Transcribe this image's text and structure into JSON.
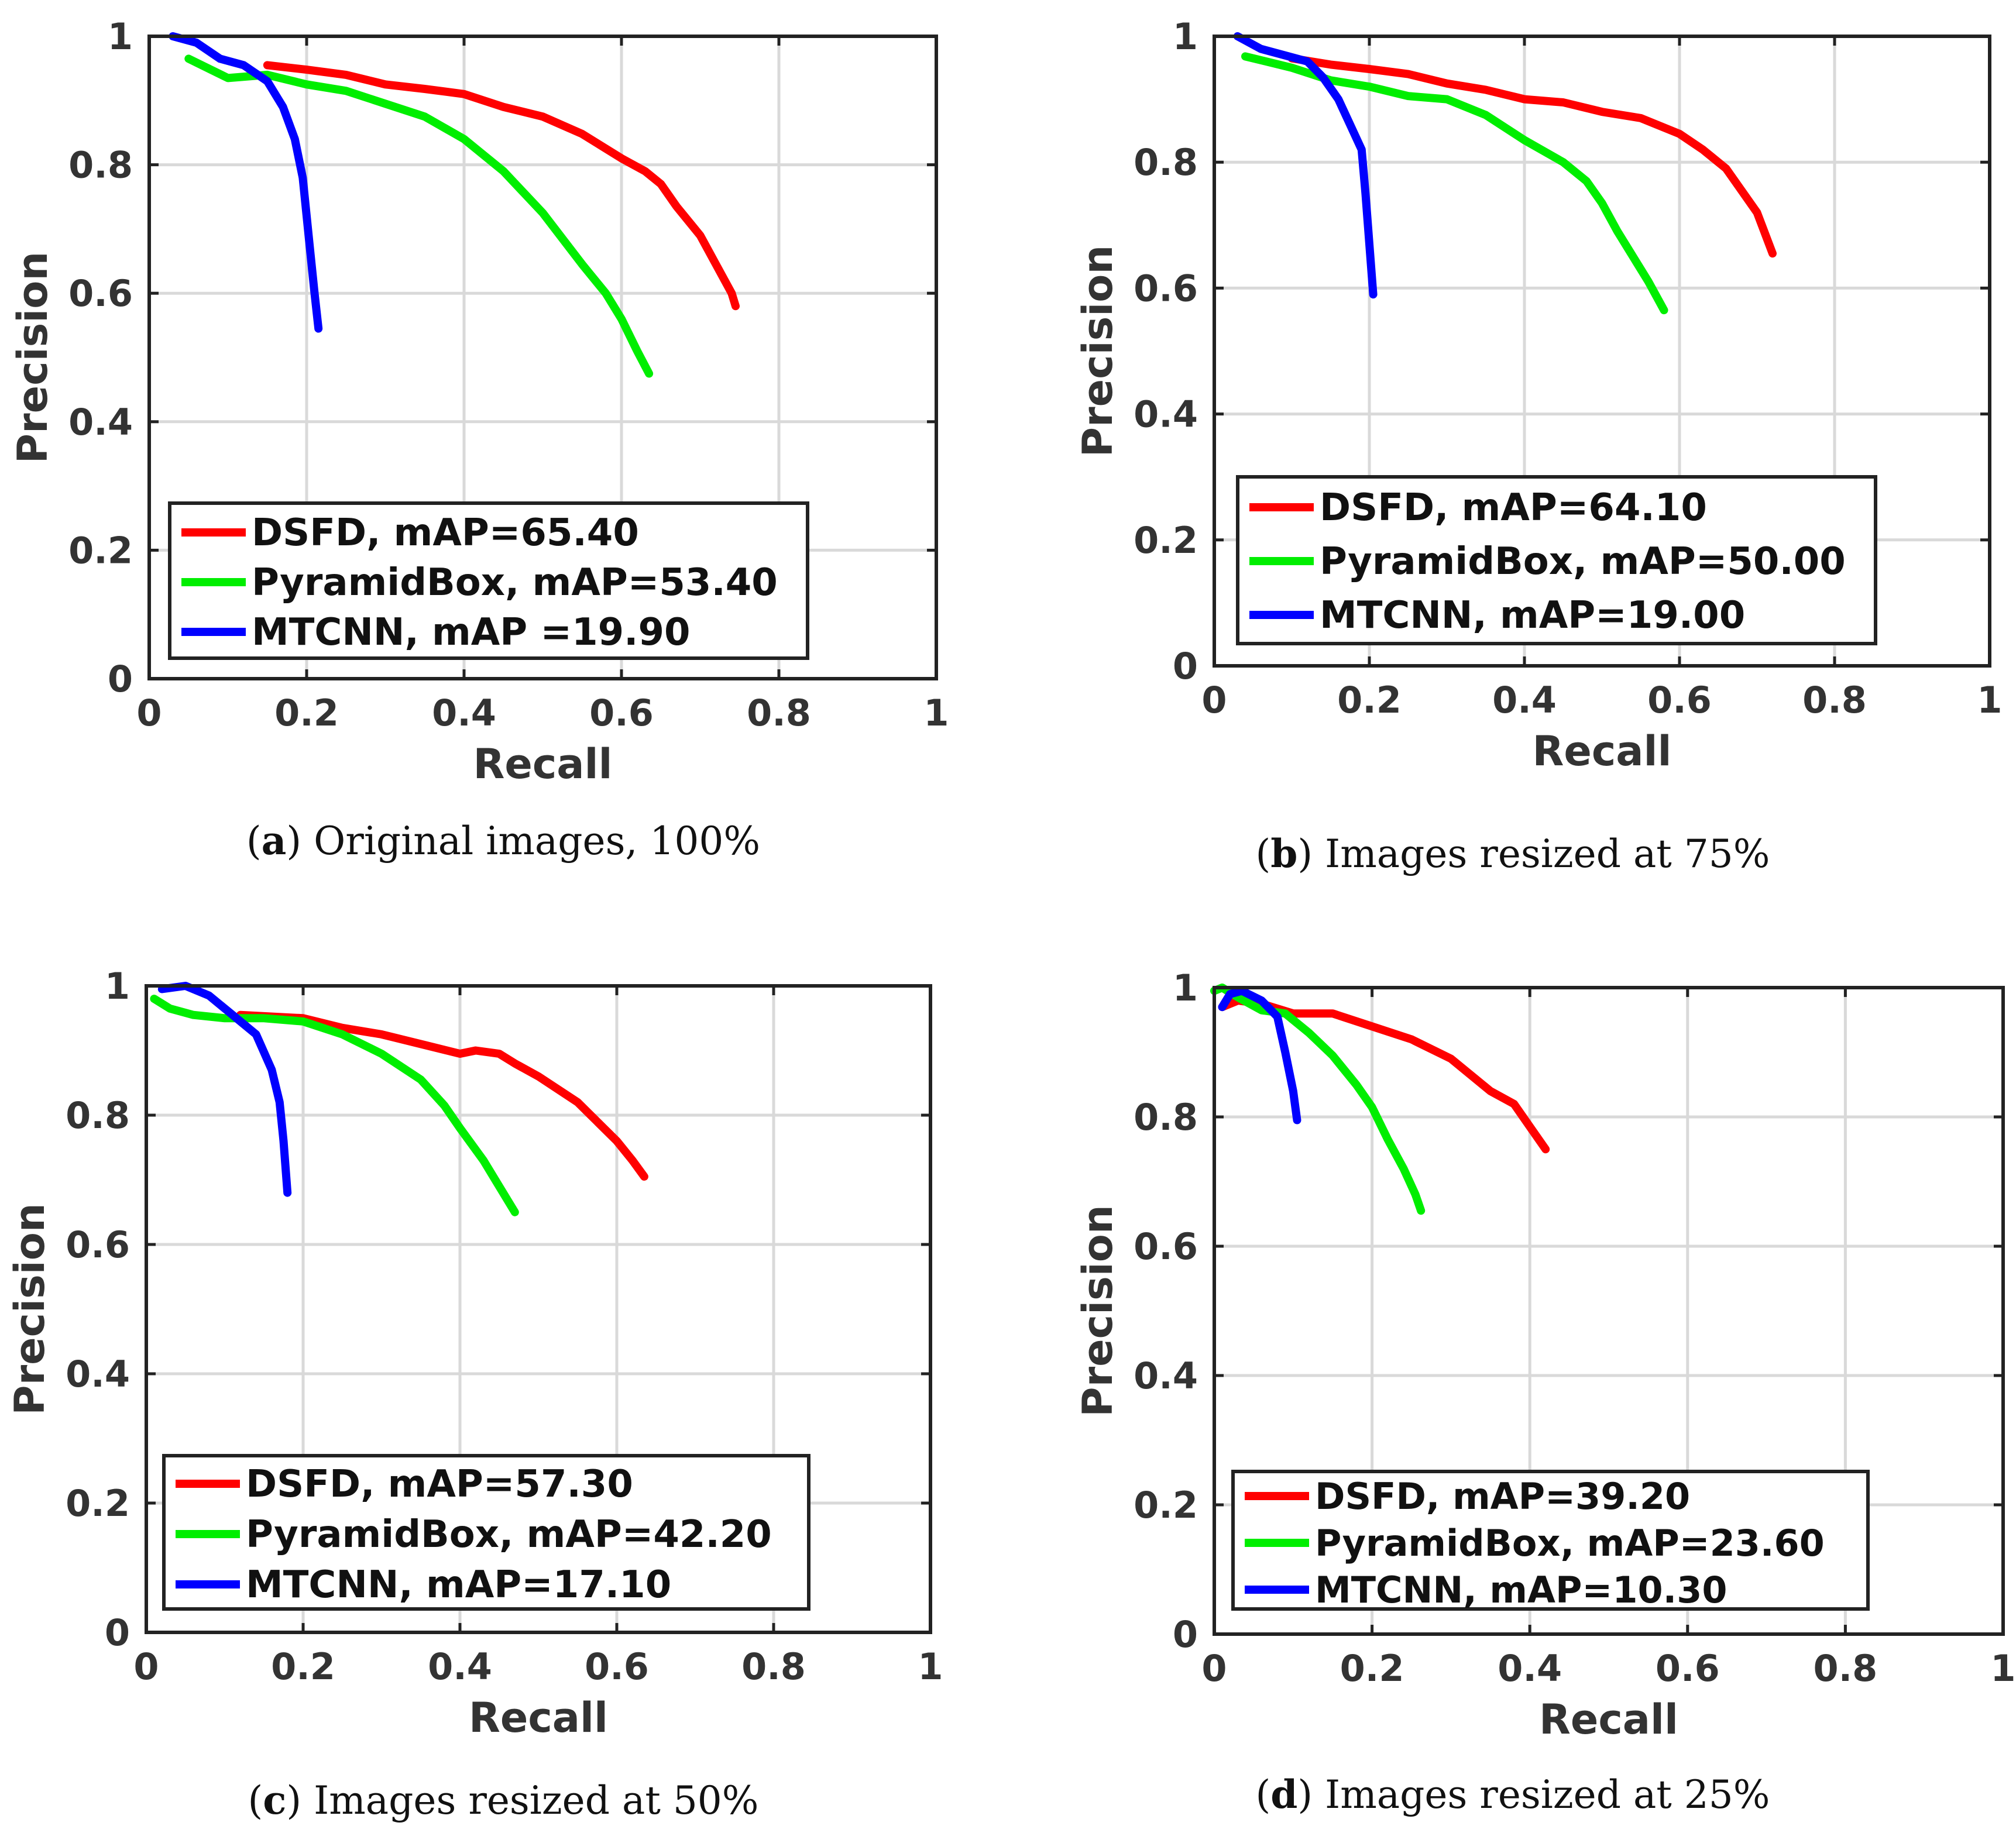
{
  "figure": {
    "panels": [
      {
        "caption_letter": "a",
        "caption_text": "Original images, 100%"
      },
      {
        "caption_letter": "b",
        "caption_text": "Images resized at 75%"
      },
      {
        "caption_letter": "c",
        "caption_text": "Images resized at 50%"
      },
      {
        "caption_letter": "d",
        "caption_text": "Images resized at 25%"
      }
    ]
  },
  "chart_data": [
    {
      "type": "line",
      "panel": "a",
      "xlabel": "Recall",
      "ylabel": "Precision",
      "xlim": [
        0,
        1
      ],
      "ylim": [
        0,
        1
      ],
      "xticks": [
        "0",
        "0.2",
        "0.4",
        "0.6",
        "0.8",
        "1"
      ],
      "yticks": [
        "0",
        "0.2",
        "0.4",
        "0.6",
        "0.8",
        "1"
      ],
      "grid": true,
      "legend_position": "bottom-left",
      "series": [
        {
          "name": "DSFD",
          "legend_label": "DSFD, mAP=65.40",
          "color": "#ff0000",
          "x": [
            0.15,
            0.2,
            0.25,
            0.3,
            0.35,
            0.4,
            0.45,
            0.5,
            0.55,
            0.6,
            0.63,
            0.65,
            0.67,
            0.7,
            0.72,
            0.74,
            0.745
          ],
          "y": [
            0.955,
            0.948,
            0.94,
            0.925,
            0.918,
            0.91,
            0.89,
            0.875,
            0.848,
            0.81,
            0.79,
            0.77,
            0.735,
            0.69,
            0.645,
            0.6,
            0.58
          ]
        },
        {
          "name": "PyramidBox",
          "legend_label": "PyramidBox, mAP=53.40",
          "color": "#00ee00",
          "x": [
            0.05,
            0.1,
            0.15,
            0.2,
            0.25,
            0.3,
            0.35,
            0.4,
            0.45,
            0.5,
            0.55,
            0.58,
            0.6,
            0.62,
            0.635
          ],
          "y": [
            0.965,
            0.935,
            0.94,
            0.925,
            0.915,
            0.895,
            0.875,
            0.84,
            0.79,
            0.725,
            0.645,
            0.6,
            0.56,
            0.51,
            0.475
          ]
        },
        {
          "name": "MTCNN",
          "legend_label": "MTCNN, mAP =19.90",
          "color": "#0000ff",
          "x": [
            0.03,
            0.06,
            0.09,
            0.12,
            0.15,
            0.17,
            0.185,
            0.195,
            0.2,
            0.205,
            0.21,
            0.215
          ],
          "y": [
            1.0,
            0.99,
            0.965,
            0.955,
            0.93,
            0.89,
            0.84,
            0.78,
            0.72,
            0.66,
            0.6,
            0.545
          ]
        }
      ]
    },
    {
      "type": "line",
      "panel": "b",
      "xlabel": "Recall",
      "ylabel": "Precision",
      "xlim": [
        0,
        1
      ],
      "ylim": [
        0,
        1
      ],
      "xticks": [
        "0",
        "0.2",
        "0.4",
        "0.6",
        "0.8",
        "1"
      ],
      "yticks": [
        "0",
        "0.2",
        "0.4",
        "0.6",
        "0.8",
        "1"
      ],
      "grid": true,
      "legend_position": "bottom-left",
      "series": [
        {
          "name": "DSFD",
          "legend_label": "DSFD, mAP=64.10",
          "color": "#ff0000",
          "x": [
            0.1,
            0.15,
            0.2,
            0.25,
            0.3,
            0.35,
            0.4,
            0.45,
            0.5,
            0.55,
            0.6,
            0.63,
            0.66,
            0.68,
            0.7,
            0.72
          ],
          "y": [
            0.965,
            0.955,
            0.948,
            0.94,
            0.925,
            0.915,
            0.9,
            0.895,
            0.88,
            0.87,
            0.845,
            0.82,
            0.79,
            0.755,
            0.72,
            0.655
          ]
        },
        {
          "name": "PyramidBox",
          "legend_label": "PyramidBox, mAP=50.00",
          "color": "#00ee00",
          "x": [
            0.04,
            0.1,
            0.15,
            0.2,
            0.25,
            0.3,
            0.35,
            0.4,
            0.45,
            0.48,
            0.5,
            0.52,
            0.54,
            0.56,
            0.58
          ],
          "y": [
            0.968,
            0.95,
            0.93,
            0.92,
            0.905,
            0.9,
            0.875,
            0.835,
            0.8,
            0.77,
            0.735,
            0.69,
            0.65,
            0.61,
            0.565
          ]
        },
        {
          "name": "MTCNN",
          "legend_label": "MTCNN, mAP=19.00",
          "color": "#0000ff",
          "x": [
            0.03,
            0.06,
            0.09,
            0.12,
            0.14,
            0.16,
            0.175,
            0.19,
            0.195,
            0.2,
            0.205
          ],
          "y": [
            1.0,
            0.98,
            0.97,
            0.96,
            0.935,
            0.9,
            0.86,
            0.82,
            0.75,
            0.67,
            0.59
          ]
        }
      ]
    },
    {
      "type": "line",
      "panel": "c",
      "xlabel": "Recall",
      "ylabel": "Precision",
      "xlim": [
        0,
        1
      ],
      "ylim": [
        0,
        1
      ],
      "xticks": [
        "0",
        "0.2",
        "0.4",
        "0.6",
        "0.8",
        "1"
      ],
      "yticks": [
        "0",
        "0.2",
        "0.4",
        "0.6",
        "0.8",
        "1"
      ],
      "grid": true,
      "legend_position": "bottom-left",
      "series": [
        {
          "name": "DSFD",
          "legend_label": "DSFD, mAP=57.30",
          "color": "#ff0000",
          "x": [
            0.12,
            0.2,
            0.25,
            0.3,
            0.35,
            0.4,
            0.42,
            0.45,
            0.47,
            0.5,
            0.55,
            0.6,
            0.62,
            0.635
          ],
          "y": [
            0.955,
            0.95,
            0.935,
            0.925,
            0.91,
            0.895,
            0.9,
            0.895,
            0.88,
            0.86,
            0.82,
            0.76,
            0.73,
            0.705
          ]
        },
        {
          "name": "PyramidBox",
          "legend_label": "PyramidBox, mAP=42.20",
          "color": "#00ee00",
          "x": [
            0.01,
            0.03,
            0.06,
            0.1,
            0.15,
            0.2,
            0.25,
            0.3,
            0.35,
            0.38,
            0.4,
            0.43,
            0.45,
            0.47
          ],
          "y": [
            0.98,
            0.965,
            0.955,
            0.95,
            0.95,
            0.945,
            0.925,
            0.895,
            0.855,
            0.815,
            0.78,
            0.73,
            0.69,
            0.65
          ]
        },
        {
          "name": "MTCNN",
          "legend_label": "MTCNN, mAP=17.10",
          "color": "#0000ff",
          "x": [
            0.02,
            0.05,
            0.08,
            0.11,
            0.14,
            0.16,
            0.17,
            0.175,
            0.18
          ],
          "y": [
            0.995,
            1.0,
            0.985,
            0.955,
            0.925,
            0.87,
            0.82,
            0.76,
            0.68
          ]
        }
      ]
    },
    {
      "type": "line",
      "panel": "d",
      "xlabel": "Recall",
      "ylabel": "Precision",
      "xlim": [
        0,
        1
      ],
      "ylim": [
        0,
        1
      ],
      "xticks": [
        "0",
        "0.2",
        "0.4",
        "0.6",
        "0.8",
        "1"
      ],
      "yticks": [
        "0",
        "0.2",
        "0.4",
        "0.6",
        "0.8",
        "1"
      ],
      "grid": true,
      "legend_position": "bottom-left",
      "series": [
        {
          "name": "DSFD",
          "legend_label": "DSFD, mAP=39.20",
          "color": "#ff0000",
          "x": [
            0.01,
            0.03,
            0.06,
            0.1,
            0.15,
            0.2,
            0.25,
            0.3,
            0.35,
            0.38,
            0.4,
            0.42
          ],
          "y": [
            0.97,
            0.98,
            0.975,
            0.96,
            0.96,
            0.94,
            0.92,
            0.89,
            0.84,
            0.82,
            0.785,
            0.75
          ]
        },
        {
          "name": "PyramidBox",
          "legend_label": "PyramidBox, mAP=23.60",
          "color": "#00ee00",
          "x": [
            0.0,
            0.01,
            0.03,
            0.06,
            0.09,
            0.12,
            0.15,
            0.18,
            0.2,
            0.22,
            0.24,
            0.255,
            0.262
          ],
          "y": [
            0.995,
            1.0,
            0.985,
            0.965,
            0.96,
            0.93,
            0.895,
            0.85,
            0.815,
            0.765,
            0.72,
            0.68,
            0.655
          ]
        },
        {
          "name": "MTCNN",
          "legend_label": "MTCNN, mAP=10.30",
          "color": "#0000ff",
          "x": [
            0.01,
            0.02,
            0.035,
            0.06,
            0.08,
            0.09,
            0.1,
            0.105
          ],
          "y": [
            0.97,
            0.99,
            0.995,
            0.98,
            0.955,
            0.9,
            0.84,
            0.795
          ]
        }
      ]
    }
  ]
}
